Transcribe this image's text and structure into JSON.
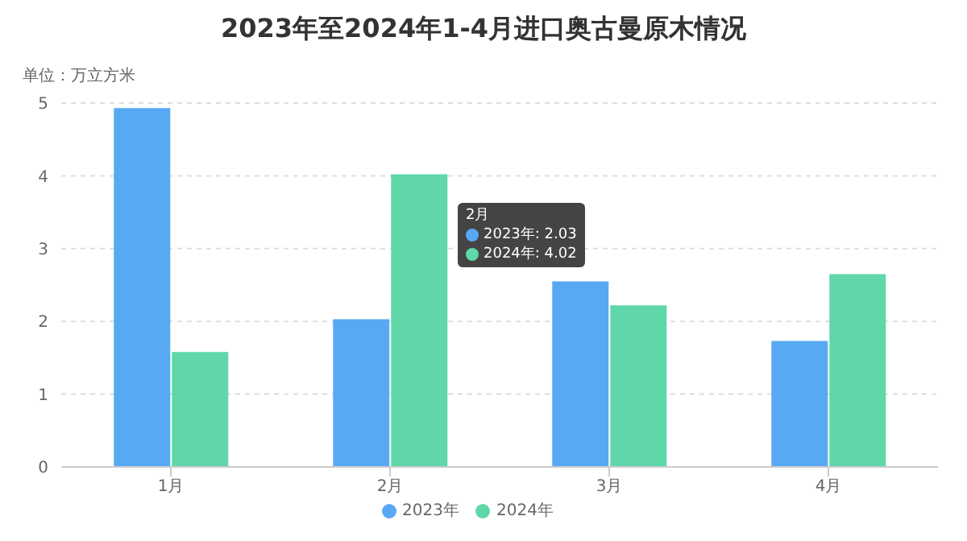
{
  "chart_data": {
    "type": "bar",
    "title": "2023年至2024年1-4月进口奥古曼原木情况",
    "ylabel": "单位：万立方米",
    "categories": [
      "1月",
      "2月",
      "3月",
      "4月"
    ],
    "series": [
      {
        "name": "2023年",
        "color": "#58a9f4",
        "values": [
          4.93,
          2.03,
          2.55,
          1.73
        ]
      },
      {
        "name": "2024年",
        "color": "#5fd7a8",
        "values": [
          1.58,
          4.02,
          2.22,
          2.65
        ]
      }
    ],
    "ylim": [
      0,
      5
    ],
    "yticks": [
      0,
      1,
      2,
      3,
      4,
      5
    ],
    "grid": "y",
    "legend": "bottom",
    "annotations": [
      "2月",
      "2023年: 2.03",
      "2024年: 4.02"
    ]
  }
}
